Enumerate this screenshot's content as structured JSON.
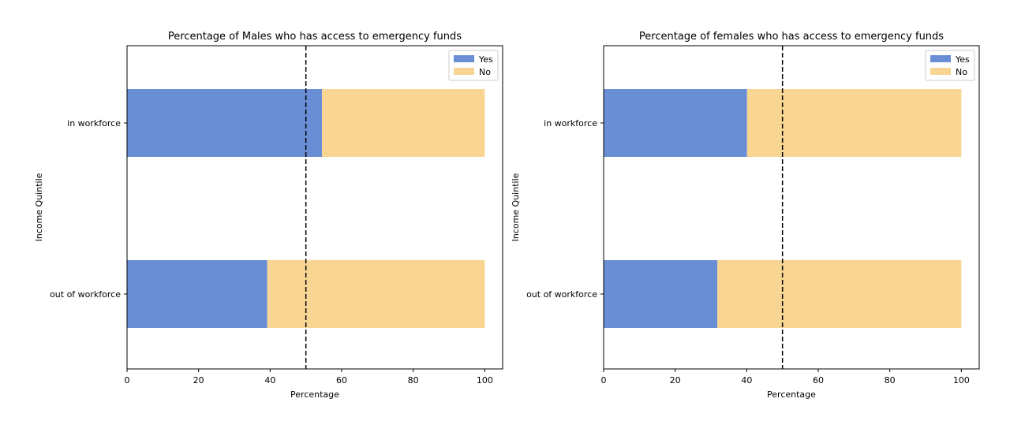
{
  "chart_data": [
    {
      "type": "bar",
      "orientation": "horizontal",
      "stacked": true,
      "title": "Percentage of Males who has access to emergency funds",
      "xlabel": "Percentage",
      "ylabel": "Income Quintile",
      "xlim": [
        0,
        105
      ],
      "xticks": [
        "0",
        "20",
        "40",
        "60",
        "80",
        "100"
      ],
      "categories": [
        "in workforce",
        "out of workforce"
      ],
      "series": [
        {
          "name": "Yes",
          "values": [
            54.5,
            39.2
          ],
          "color": "#6a8ed6"
        },
        {
          "name": "No",
          "values": [
            45.5,
            60.8
          ],
          "color": "#f8d592"
        }
      ],
      "reference_line": {
        "x": 50,
        "style": "dashed",
        "color": "#000000"
      },
      "legend": "top-right",
      "grid": false
    },
    {
      "type": "bar",
      "orientation": "horizontal",
      "stacked": true,
      "title": "Percentage of females who has access to emergency funds",
      "xlabel": "Percentage",
      "ylabel": "Income Quintile",
      "xlim": [
        0,
        105
      ],
      "xticks": [
        "0",
        "20",
        "40",
        "60",
        "80",
        "100"
      ],
      "categories": [
        "in workforce",
        "out of workforce"
      ],
      "series": [
        {
          "name": "Yes",
          "values": [
            40.1,
            31.8
          ],
          "color": "#6a8ed6"
        },
        {
          "name": "No",
          "values": [
            59.9,
            68.2
          ],
          "color": "#f8d592"
        }
      ],
      "reference_line": {
        "x": 50,
        "style": "dashed",
        "color": "#000000"
      },
      "legend": "top-right",
      "grid": false
    }
  ]
}
